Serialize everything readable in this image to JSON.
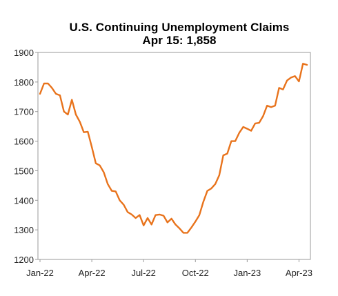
{
  "chart_data": {
    "type": "line",
    "title": "U.S. Continuing Unemployment Claims",
    "subtitle": "Apr 15: 1,858",
    "xlabel": "",
    "ylabel": "",
    "ylim": [
      1200,
      1900
    ],
    "yticks": [
      1200,
      1300,
      1400,
      1500,
      1600,
      1700,
      1800,
      1900
    ],
    "xticks": [
      {
        "label": "Jan-22",
        "week": 0
      },
      {
        "label": "Apr-22",
        "week": 13
      },
      {
        "label": "Jul-22",
        "week": 26
      },
      {
        "label": "Oct-22",
        "week": 39
      },
      {
        "label": "Jan-23",
        "week": 52
      },
      {
        "label": "Apr-23",
        "week": 65
      }
    ],
    "grid": false,
    "legend": "none",
    "line_color": "#e8731c",
    "series": [
      {
        "values": [
          1760,
          1795,
          1795,
          1780,
          1760,
          1755,
          1700,
          1690,
          1740,
          1690,
          1665,
          1630,
          1632,
          1580,
          1525,
          1518,
          1495,
          1455,
          1432,
          1430,
          1400,
          1385,
          1360,
          1352,
          1340,
          1350,
          1315,
          1340,
          1318,
          1350,
          1352,
          1348,
          1325,
          1338,
          1318,
          1305,
          1290,
          1290,
          1308,
          1328,
          1350,
          1395,
          1432,
          1440,
          1455,
          1485,
          1552,
          1558,
          1600,
          1600,
          1628,
          1648,
          1642,
          1635,
          1660,
          1662,
          1685,
          1720,
          1715,
          1720,
          1780,
          1775,
          1805,
          1815,
          1820,
          1802,
          1862,
          1858
        ]
      }
    ]
  }
}
